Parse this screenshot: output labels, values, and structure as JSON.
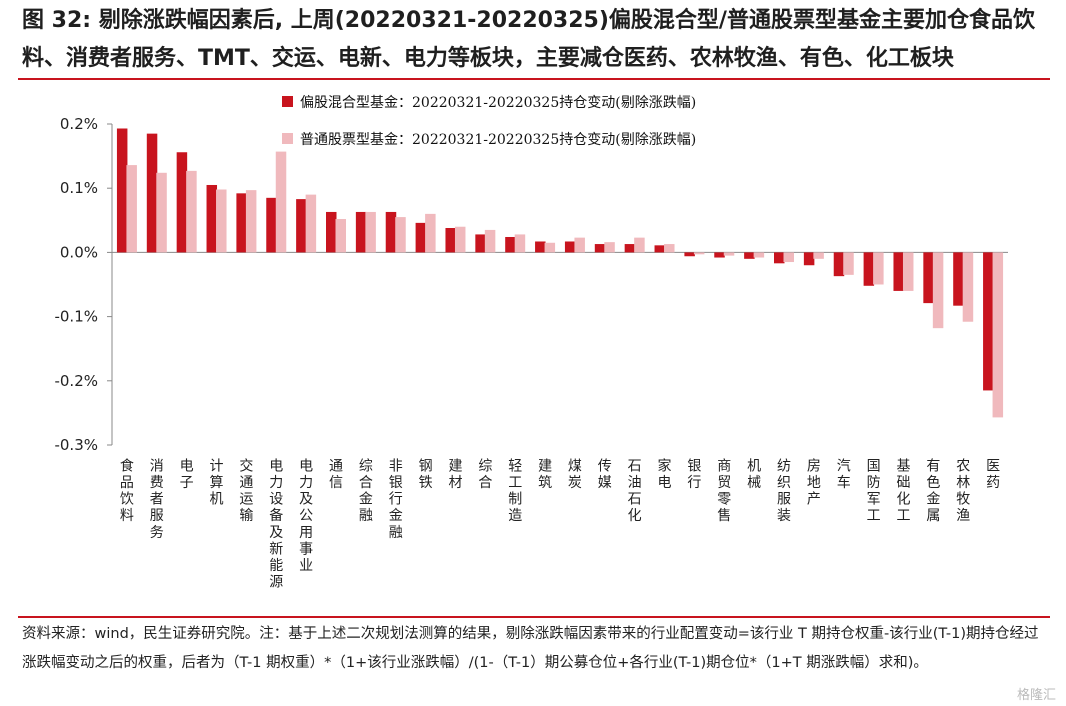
{
  "title": "图 32: 剔除涨跌幅因素后, 上周(20220321-20220325)偏股混合型/普通股票型基金主要加仓食品饮料、消费者服务、TMT、交运、电新、电力等板块，主要减仓医药、农林牧渔、有色、化工板块",
  "source": "资料来源：wind，民生证券研究院。注：基于上述二次规划法测算的结果，剔除涨跌幅因素带来的行业配置变动=该行业 T 期持仓权重-该行业(T-1)期持仓经过涨跌幅变动之后的权重，后者为（T-1 期权重）*（1+该行业涨跌幅）/(1-（T-1）期公募仓位+各行业(T-1)期仓位*（1+T 期涨跌幅）求和)。",
  "watermark": "格隆汇",
  "colors": {
    "series1": "#c8141e",
    "series2": "#f0b9bd",
    "rule": "#c8141e"
  },
  "chart_data": {
    "type": "bar",
    "y_unit": "%",
    "ylim": [
      -0.3,
      0.2
    ],
    "yticks": [
      0.2,
      0.1,
      0.0,
      -0.1,
      -0.2,
      -0.3
    ],
    "ytick_labels": [
      "0.2%",
      "0.1%",
      "0.0%",
      "-0.1%",
      "-0.2%",
      "-0.3%"
    ],
    "legend_position": "top",
    "grid": false,
    "categories": [
      "食品饮料",
      "消费者服务",
      "电子",
      "计算机",
      "交通运输",
      "电力设备及新能源",
      "电力及公用事业",
      "通信",
      "综合金融",
      "非银行金融",
      "钢铁",
      "建材",
      "综合",
      "轻工制造",
      "建筑",
      "煤炭",
      "传媒",
      "石油石化",
      "家电",
      "银行",
      "商贸零售",
      "机械",
      "纺织服装",
      "房地产",
      "汽车",
      "国防军工",
      "基础化工",
      "有色金属",
      "农林牧渔",
      "医药"
    ],
    "series": [
      {
        "name": "偏股混合型基金：20220321-20220325持仓变动(剔除涨跌幅)",
        "values": [
          0.193,
          0.185,
          0.156,
          0.105,
          0.092,
          0.085,
          0.083,
          0.063,
          0.063,
          0.063,
          0.046,
          0.038,
          0.028,
          0.024,
          0.017,
          0.017,
          0.013,
          0.013,
          0.011,
          -0.006,
          -0.008,
          -0.01,
          -0.017,
          -0.02,
          -0.037,
          -0.052,
          -0.06,
          -0.079,
          -0.083,
          -0.215
        ]
      },
      {
        "name": "普通股票型基金：20220321-20220325持仓变动(剔除涨跌幅)",
        "values": [
          0.136,
          0.124,
          0.127,
          0.098,
          0.097,
          0.157,
          0.09,
          0.052,
          0.063,
          0.055,
          0.06,
          0.04,
          0.035,
          0.028,
          0.015,
          0.023,
          0.016,
          0.023,
          0.013,
          -0.003,
          -0.005,
          -0.008,
          -0.015,
          -0.01,
          -0.035,
          -0.05,
          -0.06,
          -0.118,
          -0.108,
          -0.257
        ]
      }
    ]
  }
}
